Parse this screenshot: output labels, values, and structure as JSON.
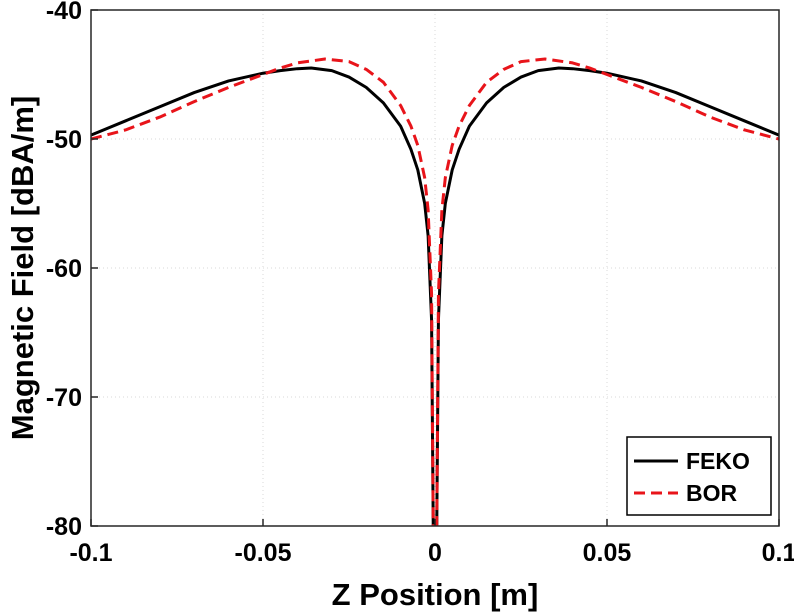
{
  "chart_data": {
    "type": "line",
    "title": "",
    "xlabel": "Z Position [m]",
    "ylabel": "Magnetic Field [dBA/m]",
    "xlim": [
      -0.1,
      0.1
    ],
    "ylim": [
      -80,
      -40
    ],
    "grid": true,
    "legend_position": "bottom-right",
    "xticks": [
      -0.1,
      -0.05,
      0,
      0.05,
      0.1
    ],
    "xtick_labels": [
      "-0.1",
      "-0.05",
      "0",
      "0.05",
      "0.1"
    ],
    "yticks": [
      -80,
      -70,
      -60,
      -50,
      -40
    ],
    "ytick_labels": [
      "-80",
      "-70",
      "-60",
      "-50",
      "-40"
    ],
    "series": [
      {
        "name": "FEKO",
        "color": "#000000",
        "style": "solid",
        "x": [
          -0.1,
          -0.09,
          -0.08,
          -0.07,
          -0.06,
          -0.05,
          -0.045,
          -0.04,
          -0.036,
          -0.03,
          -0.025,
          -0.02,
          -0.015,
          -0.01,
          -0.007,
          -0.005,
          -0.003,
          -0.002,
          -0.001,
          -0.0005,
          0.0005,
          0.001,
          0.002,
          0.003,
          0.005,
          0.007,
          0.01,
          0.015,
          0.02,
          0.025,
          0.03,
          0.036,
          0.04,
          0.045,
          0.05,
          0.06,
          0.07,
          0.08,
          0.09,
          0.1
        ],
        "y": [
          -49.7,
          -48.6,
          -47.5,
          -46.4,
          -45.5,
          -44.9,
          -44.7,
          -44.55,
          -44.5,
          -44.7,
          -45.2,
          -46.0,
          -47.2,
          -49.0,
          -50.8,
          -52.4,
          -55.0,
          -57.5,
          -64.0,
          -80.5,
          -80.5,
          -64.0,
          -57.5,
          -55.0,
          -52.4,
          -50.8,
          -49.0,
          -47.2,
          -46.0,
          -45.2,
          -44.7,
          -44.5,
          -44.55,
          -44.7,
          -44.9,
          -45.5,
          -46.4,
          -47.5,
          -48.6,
          -49.7
        ]
      },
      {
        "name": "BOR",
        "color": "#e8141a",
        "style": "dashed",
        "x": [
          -0.1,
          -0.09,
          -0.08,
          -0.07,
          -0.06,
          -0.05,
          -0.045,
          -0.04,
          -0.032,
          -0.025,
          -0.02,
          -0.015,
          -0.01,
          -0.007,
          -0.005,
          -0.003,
          -0.002,
          -0.001,
          -0.0005,
          0.0005,
          0.001,
          0.002,
          0.003,
          0.005,
          0.007,
          0.01,
          0.015,
          0.02,
          0.025,
          0.032,
          0.04,
          0.045,
          0.05,
          0.06,
          0.07,
          0.08,
          0.09,
          0.1
        ],
        "y": [
          -50.0,
          -49.3,
          -48.3,
          -47.1,
          -46.0,
          -45.0,
          -44.5,
          -44.1,
          -43.8,
          -44.0,
          -44.6,
          -45.6,
          -47.4,
          -49.0,
          -50.5,
          -53.0,
          -55.5,
          -62.0,
          -80.5,
          -80.5,
          -62.0,
          -55.5,
          -53.0,
          -50.5,
          -49.0,
          -47.4,
          -45.6,
          -44.6,
          -44.0,
          -43.8,
          -44.1,
          -44.5,
          -45.0,
          -46.0,
          -47.1,
          -48.3,
          -49.3,
          -50.0
        ]
      }
    ]
  }
}
